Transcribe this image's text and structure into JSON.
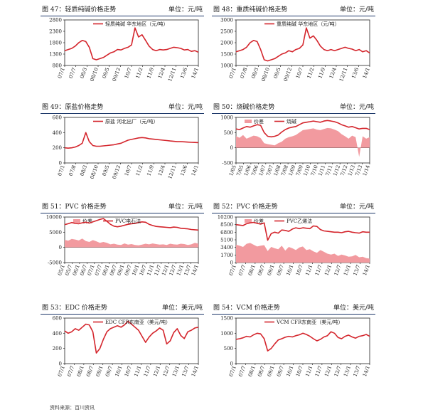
{
  "panels": [
    {
      "title": "图 47：轻质纯碱价格走势",
      "unit": "单位：元/吨"
    },
    {
      "title": "图 48：重质纯碱价格走势",
      "unit": "单位：元/吨"
    },
    {
      "title": "图 49：原盐价格走势",
      "unit": "单位：元/吨"
    },
    {
      "title": "图 50：烧碱价格走势",
      "unit": "单位：元/吨"
    },
    {
      "title": "图 51：PVC 价格走势",
      "unit": "单位：元/吨"
    },
    {
      "title": "图 52：PVC 价格走势",
      "unit": "单位：元/吨"
    },
    {
      "title": "图 53：EDC 价格走势",
      "unit": "单位：美元/吨"
    },
    {
      "title": "图 54：VCM 价格走势",
      "unit": "单位：美元/吨"
    }
  ],
  "source": "资料来源：百川资讯",
  "colors": {
    "line": "#d4252c",
    "area": "#f29a9f",
    "axis": "#222222",
    "header_rule": "#1f3a6b"
  },
  "chart_data": [
    {
      "type": "line",
      "x_labels": [
        "07/1",
        "07/7",
        "08/3",
        "08/10",
        "09/5",
        "09/12",
        "10/7",
        "11/2",
        "11/9",
        "12/4",
        "12/11",
        "13/6",
        "14/1"
      ],
      "ylim": [
        800,
        2800
      ],
      "yticks": [
        800,
        1300,
        1800,
        2300,
        2800
      ],
      "series": [
        {
          "name": "轻质纯碱 华东地区（元/吨）",
          "kind": "line",
          "values": [
            1450,
            1500,
            1550,
            1650,
            1800,
            1900,
            1850,
            1600,
            1100,
            1050,
            1100,
            1150,
            1250,
            1350,
            1400,
            1500,
            1480,
            1550,
            1600,
            1700,
            2450,
            2050,
            2150,
            1900,
            1650,
            1500,
            1450,
            1500,
            1480,
            1500,
            1550,
            1600,
            1580,
            1550,
            1480,
            1500,
            1420,
            1450,
            1380
          ]
        }
      ]
    },
    {
      "type": "line",
      "x_labels": [
        "07/1",
        "07/8",
        "08/3",
        "08/10",
        "09/5",
        "09/12",
        "10/7",
        "11/2",
        "11/9",
        "12/4",
        "12/11",
        "13/6",
        "14/1"
      ],
      "ylim": [
        1000,
        3000
      ],
      "yticks": [
        1000,
        1500,
        2000,
        2500,
        3000
      ],
      "series": [
        {
          "name": "重质纯碱 华东地区（元/吨）",
          "kind": "line",
          "values": [
            1600,
            1650,
            1700,
            1800,
            2000,
            2100,
            2050,
            1700,
            1250,
            1200,
            1250,
            1300,
            1400,
            1500,
            1550,
            1650,
            1600,
            1700,
            1750,
            1900,
            2650,
            2200,
            2300,
            2100,
            1850,
            1700,
            1650,
            1700,
            1650,
            1700,
            1750,
            1800,
            1750,
            1720,
            1650,
            1700,
            1600,
            1650,
            1550
          ]
        }
      ]
    },
    {
      "type": "line",
      "x_labels": [
        "07/1",
        "07/8",
        "08/3",
        "08/10",
        "09/5",
        "09/12",
        "10/7",
        "11/2",
        "11/9",
        "12/4",
        "12/11",
        "13/6",
        "14/1"
      ],
      "ylim": [
        0,
        600
      ],
      "yticks": [
        0,
        200,
        400,
        600
      ],
      "series": [
        {
          "name": "原盐 河北出厂（元/吨）",
          "kind": "line",
          "values": [
            200,
            195,
            200,
            210,
            230,
            260,
            400,
            280,
            230,
            220,
            220,
            225,
            230,
            235,
            240,
            250,
            260,
            280,
            300,
            310,
            320,
            330,
            335,
            330,
            320,
            315,
            310,
            305,
            300,
            295,
            290,
            285,
            280,
            280,
            278,
            275,
            272,
            270,
            268
          ]
        }
      ]
    },
    {
      "type": "combo",
      "x_labels": [
        "1/05",
        "7/05",
        "1/06",
        "7/06",
        "1/07",
        "7/07",
        "1/08",
        "7/08",
        "1/09",
        "7/09",
        "1/10",
        "7/10",
        "1/11",
        "7/11",
        "1/12",
        "7/12",
        "1/13",
        "7/13",
        "1/14"
      ],
      "ylim": [
        -500,
        1000
      ],
      "yticks": [
        -500,
        0,
        500,
        1000
      ],
      "series": [
        {
          "name": "价差",
          "kind": "area",
          "values": [
            380,
            330,
            420,
            300,
            350,
            400,
            380,
            320,
            150,
            120,
            100,
            80,
            150,
            200,
            300,
            350,
            380,
            420,
            500,
            580,
            600,
            620,
            640,
            600,
            580,
            620,
            650,
            640,
            600,
            550,
            450,
            380,
            300,
            400,
            350,
            -300,
            380,
            300,
            350
          ]
        },
        {
          "name": "烧碱",
          "kind": "line",
          "values": [
            620,
            600,
            650,
            700,
            680,
            720,
            760,
            740,
            500,
            380,
            360,
            380,
            420,
            520,
            600,
            650,
            680,
            700,
            760,
            820,
            840,
            860,
            880,
            860,
            840,
            880,
            900,
            880,
            860,
            820,
            760,
            720,
            680,
            700,
            660,
            620,
            640,
            640,
            600
          ]
        }
      ]
    },
    {
      "type": "combo",
      "x_labels": [
        "05/1",
        "05/7",
        "06/1",
        "06/7",
        "07/1",
        "07/7",
        "08/1",
        "08/7",
        "09/1",
        "09/7",
        "10/1",
        "10/7",
        "11/1",
        "11/7",
        "12/1",
        "12/7",
        "13/1",
        "13/7",
        "14/1"
      ],
      "ylim": [
        -5000,
        10000
      ],
      "yticks": [
        -5000,
        0,
        5000,
        10000
      ],
      "series": [
        {
          "name": "价差",
          "kind": "area",
          "values": [
            2500,
            2200,
            2800,
            2600,
            2300,
            2900,
            2100,
            1800,
            2400,
            2000,
            1500,
            1800,
            1500,
            1000,
            1200,
            900,
            800,
            1300,
            900,
            1100,
            800,
            700,
            900,
            1200,
            1000,
            1300,
            1100,
            900,
            1000,
            800,
            1200,
            1000,
            900,
            1200,
            1100,
            800,
            1000,
            1500,
            1200
          ]
        },
        {
          "name": "PVC电石法",
          "kind": "line",
          "values": [
            7500,
            7800,
            8200,
            7900,
            7800,
            8100,
            8300,
            8000,
            8400,
            8800,
            9200,
            9500,
            8600,
            7600,
            7000,
            6800,
            7000,
            7300,
            7600,
            7800,
            7900,
            8200,
            8400,
            8300,
            7600,
            7200,
            6900,
            6800,
            6700,
            6600,
            6500,
            6700,
            6600,
            6300,
            6200,
            6100,
            5900,
            5800,
            5700
          ]
        }
      ]
    },
    {
      "type": "combo",
      "x_labels": [
        "07/1",
        "07/7",
        "08/1",
        "08/7",
        "09/1",
        "09/7",
        "10/1",
        "10/7",
        "11/1",
        "11/7",
        "12/1",
        "12/7",
        "13/1",
        "13/7",
        "14/1"
      ],
      "ylim": [
        0,
        10200
      ],
      "yticks": [
        0,
        1700,
        3400,
        5100,
        6800,
        8500,
        10200
      ],
      "series": [
        {
          "name": "价差",
          "kind": "area",
          "values": [
            4000,
            3800,
            3500,
            4200,
            4400,
            4000,
            3600,
            3800,
            3900,
            2600,
            3500,
            3200,
            3000,
            3800,
            2700,
            3500,
            3200,
            2800,
            3400,
            3600,
            2800,
            3000,
            2500,
            2200,
            2800,
            2400,
            2000,
            1800,
            2000,
            1500,
            1800,
            1600,
            1300,
            1400,
            1700,
            1200,
            1300,
            1000,
            900
          ]
        },
        {
          "name": "PVC乙烯法",
          "kind": "line",
          "values": [
            8500,
            8400,
            8300,
            8700,
            8900,
            9000,
            8800,
            8600,
            8900,
            5000,
            6500,
            6800,
            6600,
            7300,
            7200,
            7000,
            7500,
            7800,
            7600,
            7800,
            7700,
            7600,
            8200,
            8100,
            7400,
            7100,
            7000,
            6900,
            6800,
            6800,
            6700,
            6900,
            7000,
            6800,
            6700,
            6600,
            6900,
            6800,
            6800
          ]
        }
      ]
    },
    {
      "type": "line",
      "x_labels": [
        "07/1",
        "07/7",
        "08/1",
        "08/7",
        "09/1",
        "09/7",
        "10/1",
        "10/7",
        "11/1",
        "11/7",
        "12/1",
        "12/7",
        "13/1",
        "13/7",
        "14/1"
      ],
      "ylim": [
        0,
        600
      ],
      "yticks": [
        0,
        200,
        400,
        600
      ],
      "series": [
        {
          "name": "EDC CFR东南亚（美元/吨）",
          "kind": "line",
          "values": [
            430,
            400,
            420,
            460,
            440,
            480,
            520,
            510,
            420,
            140,
            200,
            320,
            420,
            460,
            480,
            500,
            480,
            510,
            560,
            520,
            480,
            440,
            360,
            280,
            350,
            400,
            430,
            470,
            440,
            260,
            300,
            410,
            460,
            370,
            330,
            420,
            440,
            470,
            480
          ]
        }
      ]
    },
    {
      "type": "line",
      "x_labels": [
        "07/1",
        "07/7",
        "08/1",
        "08/7",
        "09/1",
        "09/7",
        "10/1",
        "10/7",
        "11/1",
        "11/7",
        "12/1",
        "12/7",
        "13/1",
        "13/7",
        "14/1"
      ],
      "ylim": [
        0,
        1500
      ],
      "yticks": [
        0,
        500,
        1000,
        1500
      ],
      "series": [
        {
          "name": "VCM CFR东南亚（美元/吨）",
          "kind": "line",
          "values": [
            800,
            820,
            850,
            900,
            880,
            950,
            1000,
            980,
            820,
            420,
            500,
            650,
            780,
            820,
            870,
            900,
            880,
            920,
            950,
            1000,
            960,
            900,
            820,
            750,
            800,
            880,
            920,
            1050,
            1000,
            860,
            820,
            900,
            940,
            880,
            840,
            900,
            920,
            960,
            900
          ]
        }
      ]
    }
  ]
}
